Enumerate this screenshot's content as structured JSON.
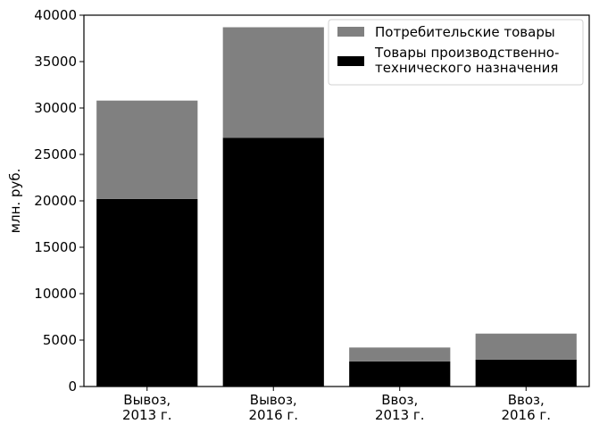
{
  "chart_data": {
    "type": "bar",
    "stacked": true,
    "categories": [
      [
        "Вывоз,",
        "2013 г."
      ],
      [
        "Вывоз,",
        "2016 г."
      ],
      [
        "Ввоз,",
        "2013 г."
      ],
      [
        "Ввоз,",
        "2016 г."
      ]
    ],
    "series": [
      {
        "name": [
          "Товары производственно-",
          "технического назначения"
        ],
        "color": "#000000",
        "values": [
          20200,
          26800,
          2700,
          2900
        ]
      },
      {
        "name": [
          "Потребительские товары"
        ],
        "color": "#808080",
        "values": [
          10600,
          11900,
          1500,
          2800
        ]
      }
    ],
    "title": "",
    "xlabel": "",
    "ylabel": "млн. руб.",
    "ylim": [
      0,
      40000
    ],
    "yticks": [
      "0",
      "5000",
      "10000",
      "15000",
      "20000",
      "25000",
      "30000",
      "35000",
      "40000"
    ],
    "grid": false,
    "legend_position": "top-right"
  }
}
